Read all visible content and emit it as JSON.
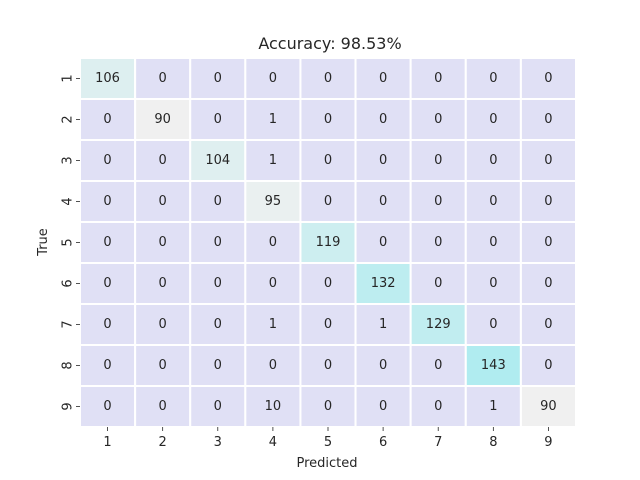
{
  "chart_data": {
    "type": "heatmap",
    "title": "Accuracy: 98.53%",
    "xlabel": "Predicted",
    "ylabel": "True",
    "x_categories": [
      "1",
      "2",
      "3",
      "4",
      "5",
      "6",
      "7",
      "8",
      "9"
    ],
    "y_categories": [
      "1",
      "2",
      "3",
      "4",
      "5",
      "6",
      "7",
      "8",
      "9"
    ],
    "matrix": [
      [
        106,
        0,
        0,
        0,
        0,
        0,
        0,
        0,
        0
      ],
      [
        0,
        90,
        0,
        1,
        0,
        0,
        0,
        0,
        0
      ],
      [
        0,
        0,
        104,
        1,
        0,
        0,
        0,
        0,
        0
      ],
      [
        0,
        0,
        0,
        95,
        0,
        0,
        0,
        0,
        0
      ],
      [
        0,
        0,
        0,
        0,
        119,
        0,
        0,
        0,
        0
      ],
      [
        0,
        0,
        0,
        0,
        0,
        132,
        0,
        0,
        0
      ],
      [
        0,
        0,
        0,
        1,
        0,
        1,
        129,
        0,
        0
      ],
      [
        0,
        0,
        0,
        0,
        0,
        0,
        0,
        143,
        0
      ],
      [
        0,
        0,
        0,
        10,
        0,
        0,
        0,
        1,
        90
      ]
    ],
    "colormap": {
      "off_diagonal": "#e0e0f5",
      "diagonal_low": "#f0f0f0",
      "diagonal_high": "#b0ecf0"
    },
    "grid": true,
    "colorbar": false
  }
}
